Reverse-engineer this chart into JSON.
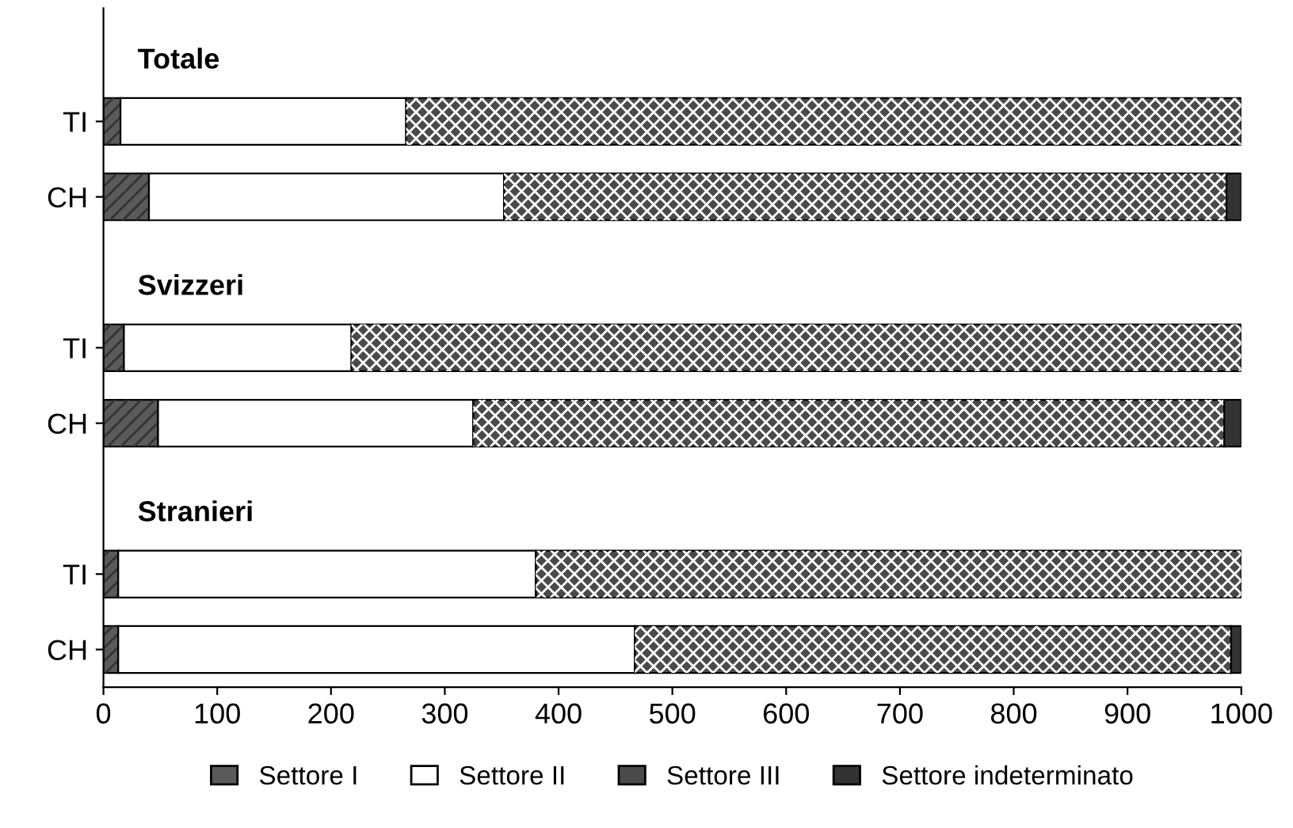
{
  "chart_data": {
    "type": "bar",
    "orientation": "horizontal",
    "stacked": true,
    "categories": [
      null,
      "TI",
      "CH",
      null,
      "TI",
      "CH",
      null,
      "TI",
      "CH"
    ],
    "annotations": [
      "Totale",
      "Svizzeri",
      "Stranieri"
    ],
    "series": [
      {
        "name": "Settore I",
        "color": "#5a5a5a",
        "values": [
          null,
          15,
          40,
          null,
          18,
          48,
          null,
          13,
          13
        ]
      },
      {
        "name": "Settore II",
        "color": "#ffffff",
        "values": [
          null,
          251,
          312,
          null,
          200,
          277,
          null,
          367,
          454
        ]
      },
      {
        "name": "Settore III",
        "color": "#4a4a4a",
        "values": [
          null,
          734,
          635,
          null,
          782,
          660,
          null,
          620,
          524
        ]
      },
      {
        "name": "Settore indeterminato",
        "color": "#333333",
        "values": [
          null,
          0,
          13,
          null,
          0,
          15,
          null,
          0,
          9
        ]
      }
    ],
    "xlim": [
      0,
      1000
    ],
    "xticks": [
      0,
      100,
      200,
      300,
      400,
      500,
      600,
      700,
      800,
      900,
      1000
    ],
    "grid": false,
    "legend": "bottom"
  }
}
